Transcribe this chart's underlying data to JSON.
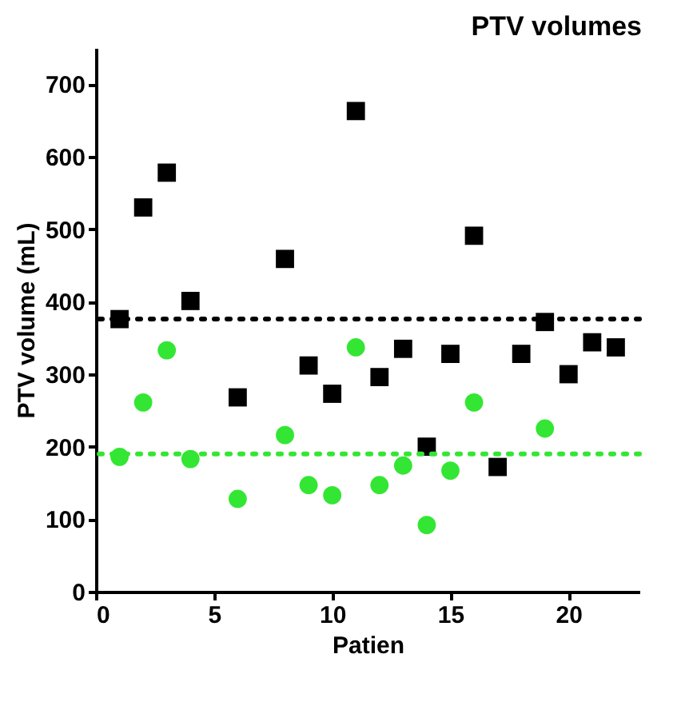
{
  "chart_data": {
    "type": "scatter",
    "title": "PTV volumes",
    "xlabel": "Patien",
    "ylabel": "PTV volume (mL)",
    "xlim": [
      0,
      23
    ],
    "xticks": [
      0,
      5,
      10,
      15,
      20
    ],
    "ylim": [
      0,
      750
    ],
    "yticks": [
      0,
      100,
      200,
      300,
      400,
      500,
      600,
      700
    ],
    "grid": false,
    "series": [
      {
        "color": "#000000",
        "marker": "square",
        "x": [
          1,
          2,
          3,
          4,
          6,
          8,
          9,
          10,
          11,
          12,
          13,
          14,
          15,
          16,
          17,
          18,
          19,
          20,
          21,
          22
        ],
        "values": [
          376,
          530,
          578,
          401,
          268,
          459,
          312,
          273,
          663,
          296,
          335,
          200,
          328,
          491,
          172,
          328,
          372,
          300,
          344,
          337
        ]
      },
      {
        "color": "#33e633",
        "marker": "circle",
        "x": [
          1,
          2,
          3,
          4,
          6,
          8,
          9,
          10,
          11,
          12,
          13,
          14,
          15,
          16,
          19
        ],
        "values": [
          186,
          261,
          333,
          183,
          128,
          216,
          147,
          133,
          337,
          147,
          174,
          92,
          167,
          261,
          225
        ]
      }
    ],
    "ref_lines": [
      {
        "axis": "y",
        "value": 376,
        "color": "#000000",
        "line_style": "dotted"
      },
      {
        "axis": "y",
        "value": 190,
        "color": "#33e633",
        "line_style": "dotted"
      }
    ]
  }
}
